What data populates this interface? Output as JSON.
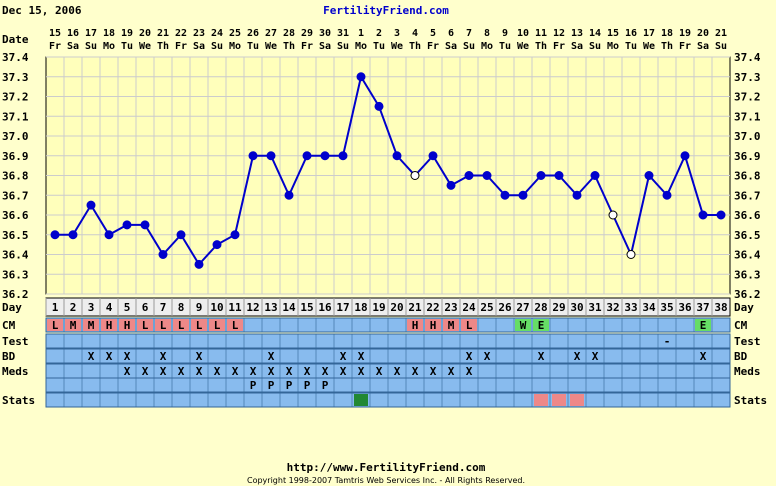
{
  "header": {
    "date": "Dec 15, 2006",
    "site": "FertilityFriend.com"
  },
  "footer": {
    "url": "http://www.FertilityFriend.com",
    "copyright": "Copyright 1998-2007 Tamtris Web Services Inc. - All Rights Reserved."
  },
  "colors": {
    "background": "#ffffcc",
    "plot": "#ffffbb",
    "line": "#0000cc",
    "strip": "#88bbee",
    "cm_red": "#ee8888",
    "cm_green": "#66dd66",
    "stats_green": "#228833",
    "stats_pink": "#ee8888",
    "grid": "#cccccc"
  },
  "labels": {
    "date": "Date",
    "day": "Day",
    "cm": "CM",
    "test": "Test",
    "bd": "BD",
    "meds": "Meds",
    "stats": "Stats"
  },
  "chart_data": {
    "type": "line",
    "ylim": [
      36.2,
      37.4
    ],
    "yticks": [
      "37.4",
      "37.3",
      "37.2",
      "37.1",
      "37.0",
      "36.9",
      "36.8",
      "36.7",
      "36.6",
      "36.5",
      "36.4",
      "36.3",
      "36.2"
    ],
    "dates": [
      "15",
      "16",
      "17",
      "18",
      "19",
      "20",
      "21",
      "22",
      "23",
      "24",
      "25",
      "26",
      "27",
      "28",
      "29",
      "30",
      "31",
      "1",
      "2",
      "3",
      "4",
      "5",
      "6",
      "7",
      "8",
      "9",
      "10",
      "11",
      "12",
      "13",
      "14",
      "15",
      "16",
      "17",
      "18",
      "19",
      "20",
      "21"
    ],
    "weekdays": [
      "Fr",
      "Sa",
      "Su",
      "Mo",
      "Tu",
      "We",
      "Th",
      "Fr",
      "Sa",
      "Su",
      "Mo",
      "Tu",
      "We",
      "Th",
      "Fr",
      "Sa",
      "Su",
      "Mo",
      "Tu",
      "We",
      "Th",
      "Fr",
      "Sa",
      "Su",
      "Mo",
      "Tu",
      "We",
      "Th",
      "Fr",
      "Sa",
      "Su",
      "Mo",
      "Tu",
      "We",
      "Th",
      "Fr",
      "Sa",
      "Su"
    ],
    "days": [
      1,
      2,
      3,
      4,
      5,
      6,
      7,
      8,
      9,
      10,
      11,
      12,
      13,
      14,
      15,
      16,
      17,
      18,
      19,
      20,
      21,
      22,
      23,
      24,
      25,
      26,
      27,
      28,
      29,
      30,
      31,
      32,
      33,
      34,
      35,
      36,
      37,
      38
    ],
    "temps": [
      36.5,
      36.5,
      36.65,
      36.5,
      36.55,
      36.55,
      36.4,
      36.5,
      36.35,
      36.45,
      36.5,
      36.9,
      36.9,
      36.7,
      36.9,
      36.9,
      36.9,
      37.3,
      37.15,
      36.9,
      36.8,
      36.9,
      36.75,
      36.8,
      36.8,
      36.7,
      36.7,
      36.8,
      36.8,
      36.7,
      36.8,
      36.6,
      36.4,
      36.8,
      36.7,
      36.9,
      36.6,
      36.6
    ],
    "open_points": [
      21,
      32,
      33
    ],
    "cm": [
      "L",
      "M",
      "M",
      "H",
      "H",
      "L",
      "L",
      "L",
      "L",
      "L",
      "L",
      "",
      "",
      "",
      "",
      "",
      "",
      "",
      "",
      "",
      "H",
      "H",
      "M",
      "L",
      "",
      "",
      "W",
      "E",
      "",
      "",
      "",
      "",
      "",
      "",
      "",
      "",
      "E",
      ""
    ],
    "test": [
      "",
      "",
      "",
      "",
      "",
      "",
      "",
      "",
      "",
      "",
      "",
      "",
      "",
      "",
      "",
      "",
      "",
      "",
      "",
      "",
      "",
      "",
      "",
      "",
      "",
      "",
      "",
      "",
      "",
      "",
      "",
      "",
      "",
      "",
      "-",
      "",
      "",
      ""
    ],
    "bd": [
      "",
      "",
      "X",
      "X",
      "X",
      "",
      "X",
      "",
      "X",
      "",
      "",
      "",
      "X",
      "",
      "",
      "",
      "X",
      "X",
      "",
      "",
      "",
      "",
      "",
      "X",
      "X",
      "",
      "",
      "X",
      "",
      "X",
      "X",
      "",
      "",
      "",
      "",
      "",
      "X",
      ""
    ],
    "meds": [
      "",
      "",
      "",
      "",
      "X",
      "X",
      "X",
      "X",
      "X",
      "X",
      "X",
      "X",
      "X",
      "X",
      "X",
      "X",
      "X",
      "X",
      "X",
      "X",
      "X",
      "X",
      "X",
      "X",
      "",
      "",
      "",
      "",
      "",
      "",
      "",
      "",
      "",
      "",
      "",
      "",
      "",
      ""
    ],
    "extra": [
      "",
      "",
      "",
      "",
      "",
      "",
      "",
      "",
      "",
      "",
      "",
      "P",
      "P",
      "P",
      "P",
      "P",
      "",
      "",
      "",
      "",
      "",
      "",
      "",
      "",
      "",
      "",
      "",
      "",
      "",
      "",
      "",
      "",
      "",
      "",
      "",
      "",
      "",
      ""
    ],
    "stats": [
      "",
      "",
      "",
      "",
      "",
      "",
      "",
      "",
      "",
      "",
      "",
      "",
      "",
      "",
      "",
      "",
      "",
      "G",
      "",
      "",
      "",
      "",
      "",
      "",
      "",
      "",
      "",
      "R",
      "R",
      "R",
      "",
      "",
      "",
      "",
      "",
      "",
      "",
      ""
    ]
  }
}
